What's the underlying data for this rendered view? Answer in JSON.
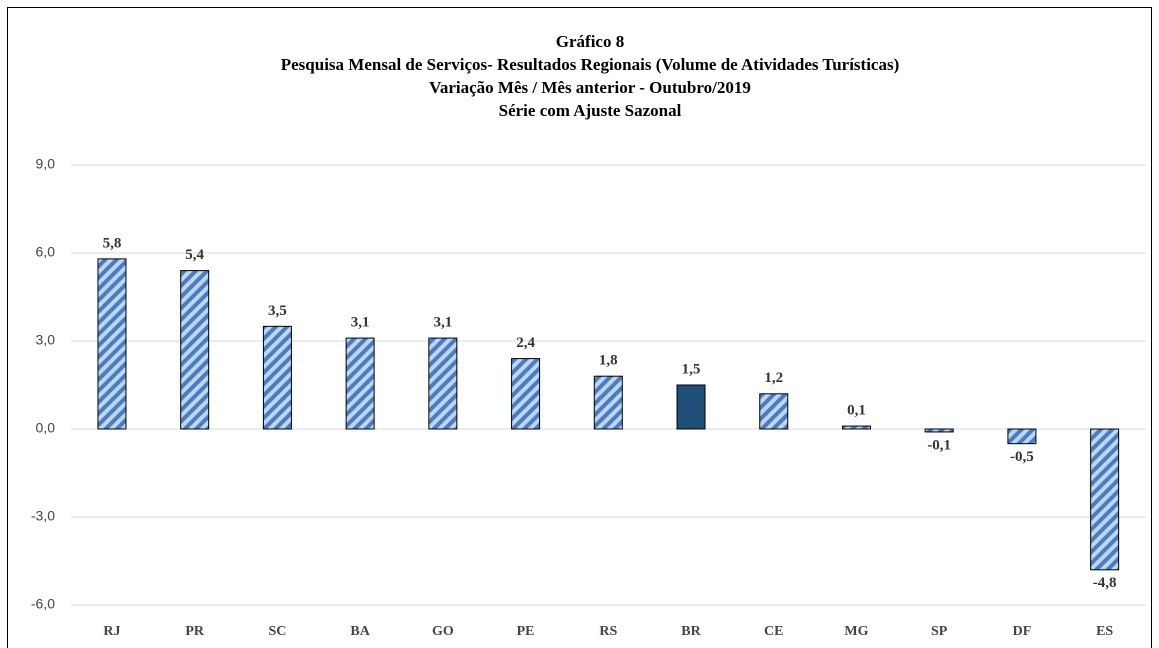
{
  "chart_data": {
    "type": "bar",
    "title": [
      "Gráfico 8",
      "Pesquisa Mensal de Serviços- Resultados Regionais (Volume de Atividades Turísticas)",
      "Variação Mês / Mês anterior - Outubro/2019",
      "Série com Ajuste Sazonal"
    ],
    "categories": [
      "RJ",
      "PR",
      "SC",
      "BA",
      "GO",
      "PE",
      "RS",
      "BR",
      "CE",
      "MG",
      "SP",
      "DF",
      "ES"
    ],
    "values": [
      5.8,
      5.4,
      3.5,
      3.1,
      3.1,
      2.4,
      1.8,
      1.5,
      1.2,
      0.1,
      -0.1,
      -0.5,
      -4.8
    ],
    "value_labels": [
      "5,8",
      "5,4",
      "3,5",
      "3,1",
      "3,1",
      "2,4",
      "1,8",
      "1,5",
      "1,2",
      "0,1",
      "-0,1",
      "-0,5",
      "-4,8"
    ],
    "colors": [
      "#4a7cc6",
      "#4a7cc6",
      "#4a7cc6",
      "#4a7cc6",
      "#4a7cc6",
      "#4a7cc6",
      "#4a7cc6",
      "#1f4e79",
      "#4a7cc6",
      "#4a7cc6",
      "#4a7cc6",
      "#4a7cc6",
      "#4a7cc6"
    ],
    "hatched": [
      true,
      true,
      true,
      true,
      true,
      true,
      true,
      false,
      true,
      true,
      true,
      true,
      true
    ],
    "ylim": [
      -6,
      9
    ],
    "yticks": [
      {
        "value": -6,
        "label": "-6,0"
      },
      {
        "value": -3,
        "label": "-3,0"
      },
      {
        "value": 0,
        "label": "0,0"
      },
      {
        "value": 3,
        "label": "3,0"
      },
      {
        "value": 6,
        "label": "6,0"
      },
      {
        "value": 9,
        "label": "9,0"
      }
    ],
    "grid": true
  }
}
